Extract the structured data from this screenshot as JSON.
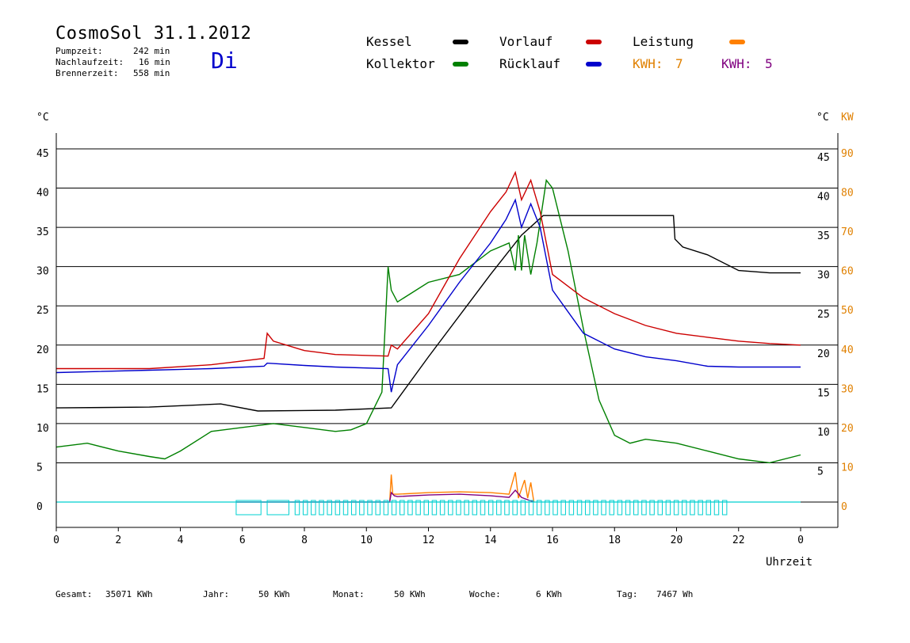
{
  "header": {
    "title": "CosmoSol 31.1.2012",
    "day": "Di",
    "stats": [
      {
        "label": "Pumpzeit:",
        "value": "242 min"
      },
      {
        "label": "Nachlaufzeit:",
        "value": "16 min"
      },
      {
        "label": "Brennerzeit:",
        "value": "558 min"
      }
    ]
  },
  "legend": {
    "kessel": "Kessel",
    "kollektor": "Kollektor",
    "vorlauf": "Vorlauf",
    "ruecklauf": "Rücklauf",
    "leistung": "Leistung",
    "kwh1_label": "KWH:",
    "kwh1_value": "7",
    "kwh2_label": "KWH:",
    "kwh2_value": "5"
  },
  "colors": {
    "kessel": "#000000",
    "kollektor": "#008000",
    "vorlauf": "#cc0000",
    "ruecklauf": "#0000cc",
    "leistung": "#ff8000",
    "kwh2": "#800080",
    "pump": "#00d0d0",
    "day": "#0000cc"
  },
  "footer": [
    {
      "label": "Gesamt:",
      "value": "35071 KWh"
    },
    {
      "label": "Jahr:",
      "value": "50 KWh"
    },
    {
      "label": "Monat:",
      "value": "50 KWh"
    },
    {
      "label": "Woche:",
      "value": "6 KWh"
    },
    {
      "label": "Tag:",
      "value": "7467 Wh"
    }
  ],
  "chart_data": {
    "type": "line",
    "title": "CosmoSol 31.1.2012",
    "xlabel": "Uhrzeit",
    "ylabel": "°C",
    "ylabel_right": "°C",
    "ylabel_right2": "KW",
    "xlim": [
      0,
      24
    ],
    "ylim": [
      0,
      45
    ],
    "ylim_right2": [
      0,
      90
    ],
    "x_ticks": [
      "0",
      "2",
      "4",
      "6",
      "8",
      "10",
      "12",
      "14",
      "16",
      "18",
      "20",
      "22",
      "0"
    ],
    "y_ticks": [
      "0",
      "5",
      "10",
      "15",
      "20",
      "25",
      "30",
      "35",
      "40",
      "45"
    ],
    "y_ticks_right": [
      "5",
      "10",
      "15",
      "20",
      "25",
      "30",
      "35",
      "40",
      "45"
    ],
    "y_ticks_right2": [
      "0",
      "10",
      "20",
      "30",
      "40",
      "50",
      "60",
      "70",
      "80",
      "90"
    ],
    "grid": true,
    "legend_position": "top",
    "series": [
      {
        "name": "Kessel",
        "color": "#000000",
        "x": [
          0,
          3,
          5.3,
          6.5,
          9,
          10.8,
          12,
          14,
          15,
          15.7,
          19.9,
          19.95,
          20.2,
          21,
          22,
          23,
          24
        ],
        "y": [
          12,
          12.1,
          12.5,
          11.6,
          11.7,
          12,
          18.5,
          29,
          34,
          36.5,
          36.5,
          33.5,
          32.5,
          31.5,
          29.5,
          29.2,
          29.2
        ]
      },
      {
        "name": "Kollektor",
        "color": "#008000",
        "x": [
          0,
          1,
          2,
          3,
          3.5,
          4,
          5,
          6,
          7,
          8,
          9,
          9.5,
          10,
          10.5,
          10.7,
          10.8,
          11,
          12,
          13,
          14,
          14.6,
          14.8,
          14.9,
          15,
          15.1,
          15.3,
          15.5,
          15.8,
          16,
          16.5,
          17,
          17.5,
          18,
          18.5,
          19,
          20,
          21,
          22,
          23,
          24
        ],
        "y": [
          7,
          7.5,
          6.5,
          5.8,
          5.5,
          6.5,
          9,
          9.5,
          10,
          9.5,
          9,
          9.2,
          10,
          14,
          30,
          27,
          25.5,
          28,
          29,
          32,
          33,
          29.5,
          34,
          29.5,
          34,
          29,
          33,
          41,
          40,
          32,
          22,
          13,
          8.5,
          7.5,
          8,
          7.5,
          6.5,
          5.5,
          5,
          6
        ]
      },
      {
        "name": "Vorlauf",
        "color": "#cc0000",
        "x": [
          0,
          3,
          5,
          6.7,
          6.8,
          7,
          8,
          9,
          10.7,
          10.8,
          11,
          12,
          13,
          14,
          14.5,
          14.8,
          15,
          15.3,
          15.6,
          16,
          17,
          18,
          19,
          20,
          21,
          22,
          23,
          24
        ],
        "y": [
          17,
          17,
          17.5,
          18.3,
          21.5,
          20.5,
          19.3,
          18.8,
          18.6,
          20,
          19.5,
          24,
          31,
          37,
          39.5,
          42,
          38.5,
          41,
          37,
          29,
          26,
          24,
          22.5,
          21.5,
          21,
          20.5,
          20.2,
          20
        ]
      },
      {
        "name": "Rücklauf",
        "color": "#0000cc",
        "x": [
          0,
          3,
          5,
          6.7,
          6.8,
          8,
          9,
          10.7,
          10.8,
          11,
          12,
          13,
          14,
          14.5,
          14.8,
          15,
          15.3,
          15.6,
          16,
          17,
          18,
          19,
          20,
          21,
          22,
          23,
          24
        ],
        "y": [
          16.5,
          16.8,
          17,
          17.3,
          17.7,
          17.4,
          17.2,
          17,
          14,
          17.5,
          22.5,
          28,
          33,
          36,
          38.5,
          35,
          38,
          35,
          27,
          21.5,
          19.5,
          18.5,
          18,
          17.3,
          17.2,
          17.2,
          17.2
        ]
      },
      {
        "name": "Leistung",
        "color": "#ff8000",
        "x": [
          10.75,
          10.8,
          10.85,
          11,
          12,
          13,
          14,
          14.6,
          14.8,
          14.9,
          15.1,
          15.2,
          15.3,
          15.4
        ],
        "y": [
          0,
          3.5,
          1,
          1,
          1.2,
          1.3,
          1.2,
          1,
          3.8,
          0.5,
          2.8,
          0.5,
          2.5,
          0
        ]
      },
      {
        "name": "KWH",
        "color": "#800080",
        "x": [
          5.8,
          6.7,
          6.8,
          7.6,
          10.75,
          10.8,
          10.9,
          11,
          12,
          13,
          14,
          14.6,
          14.8,
          15,
          15.4
        ],
        "y": [
          0,
          0,
          0,
          0,
          0,
          1.2,
          0.8,
          0.7,
          0.9,
          1,
          0.8,
          0.6,
          1.5,
          0.6,
          0
        ]
      }
    ]
  }
}
